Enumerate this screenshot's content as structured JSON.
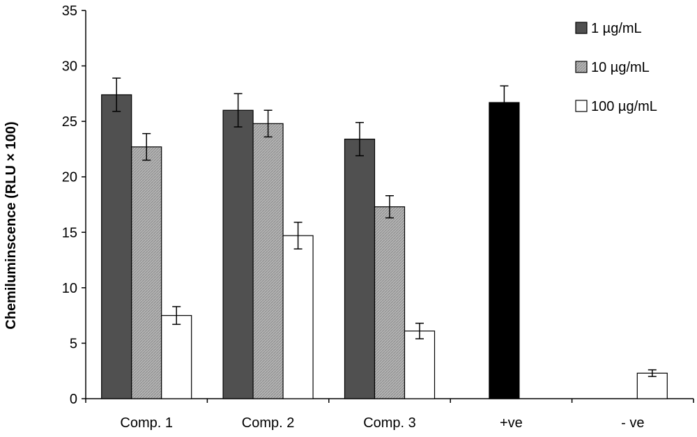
{
  "chart_data": {
    "type": "bar",
    "title": "",
    "xlabel": "",
    "ylabel": "Chemiluminscence (RLU × 100)",
    "ylim": [
      0,
      35
    ],
    "yticks": [
      0,
      5,
      10,
      15,
      20,
      25,
      30,
      35
    ],
    "categories": [
      "Comp. 1",
      "Comp. 2",
      "Comp. 3",
      "+ve",
      "- ve"
    ],
    "series": [
      {
        "name": "1 µg/mL",
        "color": "#505050",
        "pattern": "solid",
        "values": [
          27.4,
          26.0,
          23.4,
          null,
          null
        ],
        "errors": [
          1.5,
          1.5,
          1.5,
          null,
          null
        ]
      },
      {
        "name": "10 µg/mL",
        "color": "#a8a8a8",
        "pattern": "hatched",
        "values": [
          22.7,
          24.8,
          17.3,
          null,
          null
        ],
        "errors": [
          1.2,
          1.2,
          1.0,
          null,
          null
        ]
      },
      {
        "name": "100 µg/mL",
        "color": "#ffffff",
        "pattern": "outline",
        "values": [
          7.5,
          14.7,
          6.1,
          null,
          2.3
        ],
        "errors": [
          0.8,
          1.2,
          0.7,
          null,
          0.3
        ]
      }
    ],
    "controls": [
      {
        "category": "+ve",
        "value": 26.7,
        "error": 1.5,
        "color": "#000000"
      }
    ],
    "legend": {
      "position": "top-right",
      "entries": [
        "1 µg/mL",
        "10 µg/mL",
        "100 µg/mL"
      ]
    },
    "grid": false
  }
}
